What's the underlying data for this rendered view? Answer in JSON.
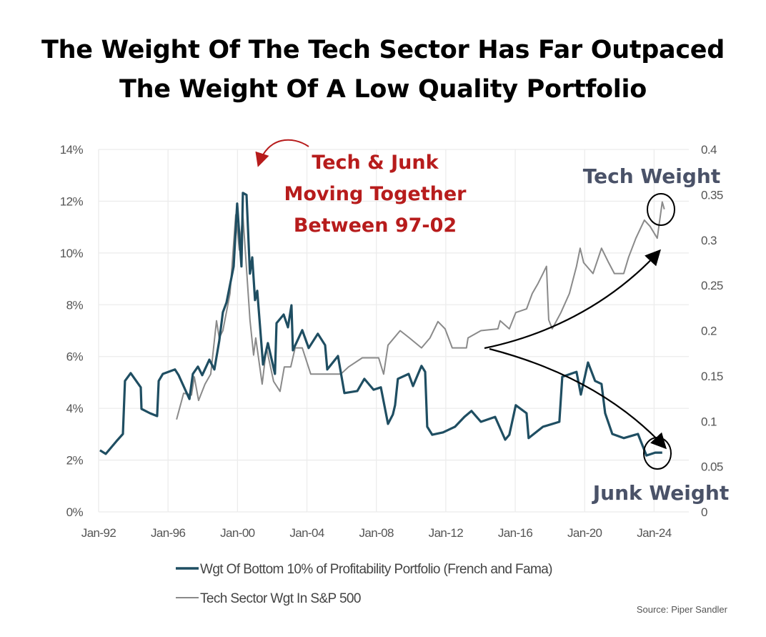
{
  "chart_data": {
    "type": "line",
    "title": "The Weight Of The Tech Sector Has Far Outpaced The Weight Of A Low Quality Portfolio",
    "title_lines": [
      "The Weight Of The Tech Sector Has Far Outpaced",
      "The Weight Of A Low Quality Portfolio"
    ],
    "xlim": [
      1992,
      2026
    ],
    "x_ticks": [
      {
        "value": 1992,
        "label": "Jan-92"
      },
      {
        "value": 1996,
        "label": "Jan-96"
      },
      {
        "value": 2000,
        "label": "Jan-00"
      },
      {
        "value": 2004,
        "label": "Jan-04"
      },
      {
        "value": 2008,
        "label": "Jan-08"
      },
      {
        "value": 2012,
        "label": "Jan-12"
      },
      {
        "value": 2016,
        "label": "Jan-16"
      },
      {
        "value": 2020,
        "label": "Jan-20"
      },
      {
        "value": 2024,
        "label": "Jan-24"
      }
    ],
    "y_left": {
      "ylim": [
        0,
        14
      ],
      "ticks": [
        {
          "value": 0,
          "label": "0%"
        },
        {
          "value": 2,
          "label": "2%"
        },
        {
          "value": 4,
          "label": "4%"
        },
        {
          "value": 6,
          "label": "6%"
        },
        {
          "value": 8,
          "label": "8%"
        },
        {
          "value": 10,
          "label": "10%"
        },
        {
          "value": 12,
          "label": "12%"
        },
        {
          "value": 14,
          "label": "14%"
        }
      ]
    },
    "y_right": {
      "ylim": [
        0,
        0.4
      ],
      "ticks": [
        {
          "value": 0,
          "label": "0"
        },
        {
          "value": 0.05,
          "label": "0.05"
        },
        {
          "value": 0.1,
          "label": "0.1"
        },
        {
          "value": 0.15,
          "label": "0.15"
        },
        {
          "value": 0.2,
          "label": "0.2"
        },
        {
          "value": 0.25,
          "label": "0.25"
        },
        {
          "value": 0.3,
          "label": "0.3"
        },
        {
          "value": 0.35,
          "label": "0.35"
        },
        {
          "value": 0.4,
          "label": "0.4"
        }
      ]
    },
    "grid": true,
    "legend_position": "bottom",
    "series": [
      {
        "name": "Wgt Of Bottom 10% of Profitability Portfolio (French and Fama)",
        "axis": "left",
        "unit": "%",
        "color": "#1f4e62",
        "points": [
          [
            1992.08,
            2.38
          ],
          [
            1992.41,
            2.24
          ],
          [
            1993.03,
            2.73
          ],
          [
            1993.4,
            3.01
          ],
          [
            1993.52,
            5.06
          ],
          [
            1993.85,
            5.36
          ],
          [
            1994.43,
            4.81
          ],
          [
            1994.47,
            3.98
          ],
          [
            1994.96,
            3.81
          ],
          [
            1995.37,
            3.7
          ],
          [
            1995.46,
            5.06
          ],
          [
            1995.7,
            5.33
          ],
          [
            1996.4,
            5.5
          ],
          [
            1996.61,
            5.28
          ],
          [
            1997.23,
            4.36
          ],
          [
            1997.43,
            5.33
          ],
          [
            1997.72,
            5.61
          ],
          [
            1997.97,
            5.28
          ],
          [
            1998.38,
            5.88
          ],
          [
            1998.67,
            5.5
          ],
          [
            1998.95,
            6.6
          ],
          [
            1999.16,
            7.71
          ],
          [
            1999.37,
            8.09
          ],
          [
            1999.78,
            9.48
          ],
          [
            1999.98,
            11.91
          ],
          [
            2000.23,
            9.48
          ],
          [
            2000.31,
            12.32
          ],
          [
            2000.52,
            12.24
          ],
          [
            2000.72,
            9.2
          ],
          [
            2000.85,
            9.83
          ],
          [
            2001.01,
            8.18
          ],
          [
            2001.14,
            8.54
          ],
          [
            2001.47,
            5.69
          ],
          [
            2001.75,
            6.52
          ],
          [
            2002.16,
            5.33
          ],
          [
            2002.25,
            7.29
          ],
          [
            2002.66,
            7.62
          ],
          [
            2002.91,
            7.13
          ],
          [
            2003.11,
            7.98
          ],
          [
            2003.19,
            6.24
          ],
          [
            2003.73,
            7.02
          ],
          [
            2004.1,
            6.33
          ],
          [
            2004.63,
            6.88
          ],
          [
            2005.05,
            6.44
          ],
          [
            2005.17,
            5.5
          ],
          [
            2005.79,
            6.02
          ],
          [
            2006.16,
            4.59
          ],
          [
            2006.9,
            4.67
          ],
          [
            2007.31,
            5.14
          ],
          [
            2007.84,
            4.72
          ],
          [
            2008.26,
            4.81
          ],
          [
            2008.67,
            3.4
          ],
          [
            2008.95,
            3.76
          ],
          [
            2009.08,
            4.12
          ],
          [
            2009.24,
            5.14
          ],
          [
            2009.86,
            5.33
          ],
          [
            2010.11,
            4.86
          ],
          [
            2010.6,
            5.64
          ],
          [
            2010.81,
            5.41
          ],
          [
            2010.93,
            3.29
          ],
          [
            2011.22,
            2.98
          ],
          [
            2011.84,
            3.07
          ],
          [
            2012.53,
            3.29
          ],
          [
            2013.07,
            3.67
          ],
          [
            2013.48,
            3.9
          ],
          [
            2014.02,
            3.48
          ],
          [
            2014.84,
            3.67
          ],
          [
            2015.42,
            2.79
          ],
          [
            2015.66,
            2.98
          ],
          [
            2016.03,
            4.12
          ],
          [
            2016.65,
            3.81
          ],
          [
            2016.77,
            2.85
          ],
          [
            2017.6,
            3.29
          ],
          [
            2018.54,
            3.48
          ],
          [
            2018.71,
            5.22
          ],
          [
            2019.53,
            5.41
          ],
          [
            2019.78,
            4.53
          ],
          [
            2020.19,
            5.77
          ],
          [
            2020.6,
            5.06
          ],
          [
            2020.97,
            4.94
          ],
          [
            2021.18,
            3.81
          ],
          [
            2021.59,
            3.01
          ],
          [
            2022.25,
            2.85
          ],
          [
            2023.07,
            3.01
          ],
          [
            2023.56,
            2.18
          ],
          [
            2024.06,
            2.29
          ],
          [
            2024.47,
            2.29
          ]
        ]
      },
      {
        "name": "Tech Sector Wgt In S&P 500",
        "axis": "right",
        "unit": "fraction",
        "color": "#8a8a8a",
        "points": [
          [
            1996.49,
            0.102
          ],
          [
            1996.9,
            0.131
          ],
          [
            1997.35,
            0.129
          ],
          [
            1997.51,
            0.149
          ],
          [
            1997.76,
            0.123
          ],
          [
            1998.13,
            0.141
          ],
          [
            1998.46,
            0.152
          ],
          [
            1998.79,
            0.211
          ],
          [
            1998.95,
            0.192
          ],
          [
            1999.16,
            0.2
          ],
          [
            1999.57,
            0.241
          ],
          [
            1999.9,
            0.328
          ],
          [
            2000.11,
            0.289
          ],
          [
            2000.31,
            0.328
          ],
          [
            2000.72,
            0.212
          ],
          [
            2000.93,
            0.173
          ],
          [
            2001.05,
            0.192
          ],
          [
            2001.42,
            0.141
          ],
          [
            2001.67,
            0.181
          ],
          [
            2002.08,
            0.144
          ],
          [
            2002.45,
            0.133
          ],
          [
            2002.7,
            0.16
          ],
          [
            2003.07,
            0.16
          ],
          [
            2003.32,
            0.181
          ],
          [
            2003.73,
            0.181
          ],
          [
            2004.22,
            0.152
          ],
          [
            2004.72,
            0.152
          ],
          [
            2005.95,
            0.152
          ],
          [
            2006.4,
            0.16
          ],
          [
            2007.19,
            0.17
          ],
          [
            2008.13,
            0.17
          ],
          [
            2008.42,
            0.152
          ],
          [
            2008.67,
            0.184
          ],
          [
            2009.37,
            0.2
          ],
          [
            2009.9,
            0.192
          ],
          [
            2010.6,
            0.181
          ],
          [
            2011.09,
            0.192
          ],
          [
            2011.55,
            0.21
          ],
          [
            2011.96,
            0.202
          ],
          [
            2012.37,
            0.181
          ],
          [
            2013.19,
            0.181
          ],
          [
            2013.28,
            0.192
          ],
          [
            2014.02,
            0.2
          ],
          [
            2015.0,
            0.202
          ],
          [
            2015.13,
            0.211
          ],
          [
            2015.66,
            0.202
          ],
          [
            2016.03,
            0.22
          ],
          [
            2016.65,
            0.224
          ],
          [
            2016.98,
            0.241
          ],
          [
            2017.31,
            0.252
          ],
          [
            2017.6,
            0.263
          ],
          [
            2017.8,
            0.271
          ],
          [
            2017.93,
            0.212
          ],
          [
            2018.13,
            0.202
          ],
          [
            2018.63,
            0.22
          ],
          [
            2019.12,
            0.241
          ],
          [
            2019.53,
            0.271
          ],
          [
            2019.74,
            0.291
          ],
          [
            2019.94,
            0.275
          ],
          [
            2020.48,
            0.263
          ],
          [
            2020.97,
            0.291
          ],
          [
            2021.38,
            0.275
          ],
          [
            2021.71,
            0.263
          ],
          [
            2022.25,
            0.263
          ],
          [
            2022.53,
            0.281
          ],
          [
            2022.95,
            0.302
          ],
          [
            2023.44,
            0.322
          ],
          [
            2023.77,
            0.315
          ],
          [
            2024.18,
            0.302
          ],
          [
            2024.47,
            0.342
          ],
          [
            2024.59,
            0.334
          ]
        ]
      }
    ],
    "annotations": {
      "together_lines": [
        "Tech & Junk",
        "Moving Together",
        "Between 97-02"
      ],
      "tech_weight": "Tech Weight",
      "junk_weight": "Junk Weight"
    },
    "source": "Source: Piper Sandler",
    "colors": {
      "annotation_red": "#b71c1c",
      "annotation_slate": "#4a5268",
      "grid": "#ececec"
    }
  }
}
